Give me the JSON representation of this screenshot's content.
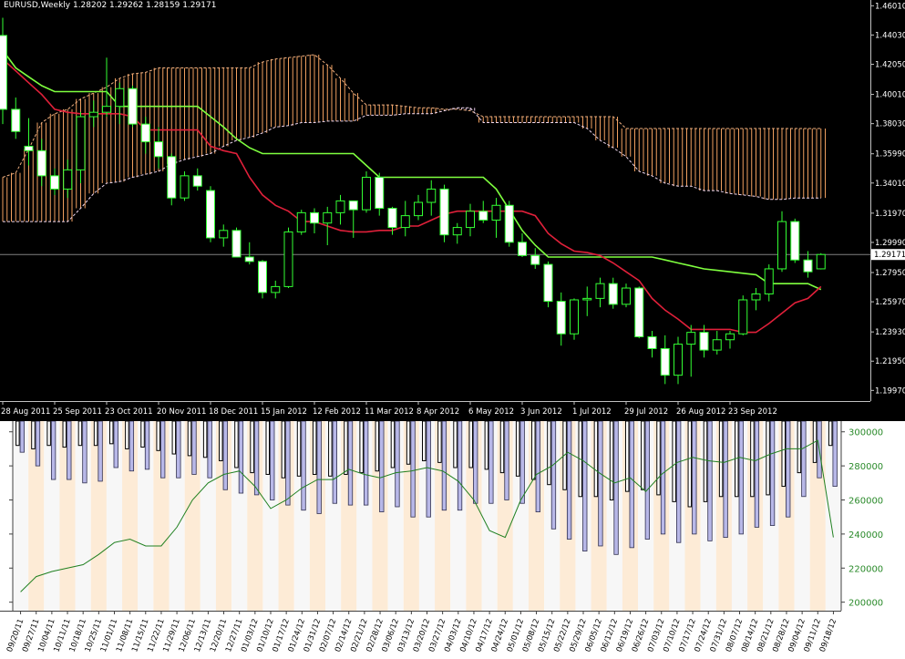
{
  "header": {
    "title": "EURUSD,Weekly  1.28202 1.29262 1.28159 1.29171"
  },
  "chart_data": [
    {
      "type": "candlestick",
      "symbol": "EURUSD",
      "timeframe": "Weekly",
      "ohlc_label": "1.28202 1.29262 1.28159 1.29171",
      "current_price_label": "1.29171",
      "ylim": [
        1.1925,
        1.464
      ],
      "y_ticks": [
        "1.46010",
        "1.44030",
        "1.42050",
        "1.40010",
        "1.38030",
        "1.35990",
        "1.34010",
        "1.31970",
        "1.29990",
        "1.27950",
        "1.25970",
        "1.23930",
        "1.21950",
        "1.19970"
      ],
      "x_ticks": [
        "28 Aug 2011",
        "25 Sep 2011",
        "23 Oct 2011",
        "20 Nov 2011",
        "18 Dec 2011",
        "15 Jan 2012",
        "12 Feb 2012",
        "11 Mar 2012",
        "8 Apr 2012",
        "6 May 2012",
        "3 Jun 2012",
        "1 Jul 2012",
        "29 Jul 2012",
        "26 Aug 2012",
        "23 Sep 2012"
      ],
      "candles": [
        [
          1.44,
          1.452,
          1.38,
          1.39
        ],
        [
          1.39,
          1.398,
          1.37,
          1.375
        ],
        [
          1.365,
          1.384,
          1.352,
          1.362
        ],
        [
          1.362,
          1.37,
          1.338,
          1.345
        ],
        [
          1.345,
          1.35,
          1.332,
          1.336
        ],
        [
          1.336,
          1.356,
          1.33,
          1.349
        ],
        [
          1.349,
          1.388,
          1.34,
          1.385
        ],
        [
          1.385,
          1.396,
          1.378,
          1.388
        ],
        [
          1.388,
          1.425,
          1.385,
          1.392
        ],
        [
          1.392,
          1.408,
          1.38,
          1.404
        ],
        [
          1.404,
          1.406,
          1.378,
          1.38
        ],
        [
          1.38,
          1.385,
          1.36,
          1.368
        ],
        [
          1.368,
          1.378,
          1.35,
          1.358
        ],
        [
          1.358,
          1.36,
          1.325,
          1.33
        ],
        [
          1.33,
          1.348,
          1.328,
          1.345
        ],
        [
          1.345,
          1.35,
          1.335,
          1.338
        ],
        [
          1.335,
          1.338,
          1.3,
          1.303
        ],
        [
          1.303,
          1.312,
          1.297,
          1.308
        ],
        [
          1.308,
          1.31,
          1.292,
          1.29
        ],
        [
          1.29,
          1.3,
          1.285,
          1.287
        ],
        [
          1.287,
          1.288,
          1.262,
          1.266
        ],
        [
          1.266,
          1.274,
          1.262,
          1.27
        ],
        [
          1.27,
          1.31,
          1.269,
          1.307
        ],
        [
          1.307,
          1.322,
          1.305,
          1.32
        ],
        [
          1.32,
          1.323,
          1.306,
          1.313
        ],
        [
          1.313,
          1.324,
          1.298,
          1.32
        ],
        [
          1.32,
          1.332,
          1.312,
          1.328
        ],
        [
          1.328,
          1.328,
          1.303,
          1.322
        ],
        [
          1.322,
          1.348,
          1.32,
          1.344
        ],
        [
          1.344,
          1.347,
          1.318,
          1.323
        ],
        [
          1.323,
          1.324,
          1.305,
          1.31
        ],
        [
          1.31,
          1.328,
          1.304,
          1.318
        ],
        [
          1.318,
          1.332,
          1.315,
          1.327
        ],
        [
          1.327,
          1.342,
          1.318,
          1.336
        ],
        [
          1.336,
          1.339,
          1.3,
          1.305
        ],
        [
          1.305,
          1.313,
          1.299,
          1.31
        ],
        [
          1.31,
          1.326,
          1.304,
          1.321
        ],
        [
          1.321,
          1.328,
          1.313,
          1.315
        ],
        [
          1.315,
          1.33,
          1.303,
          1.325
        ],
        [
          1.325,
          1.328,
          1.297,
          1.3
        ],
        [
          1.3,
          1.306,
          1.29,
          1.291
        ],
        [
          1.291,
          1.296,
          1.282,
          1.285
        ],
        [
          1.285,
          1.287,
          1.256,
          1.26
        ],
        [
          1.26,
          1.266,
          1.23,
          1.238
        ],
        [
          1.238,
          1.262,
          1.234,
          1.261
        ],
        [
          1.261,
          1.27,
          1.25,
          1.262
        ],
        [
          1.262,
          1.276,
          1.256,
          1.272
        ],
        [
          1.272,
          1.276,
          1.255,
          1.258
        ],
        [
          1.258,
          1.272,
          1.256,
          1.269
        ],
        [
          1.269,
          1.27,
          1.235,
          1.236
        ],
        [
          1.236,
          1.24,
          1.222,
          1.228
        ],
        [
          1.228,
          1.237,
          1.204,
          1.21
        ],
        [
          1.21,
          1.236,
          1.204,
          1.231
        ],
        [
          1.231,
          1.244,
          1.209,
          1.239
        ],
        [
          1.239,
          1.244,
          1.222,
          1.227
        ],
        [
          1.227,
          1.24,
          1.224,
          1.234
        ],
        [
          1.234,
          1.24,
          1.228,
          1.238
        ],
        [
          1.238,
          1.264,
          1.237,
          1.261
        ],
        [
          1.261,
          1.269,
          1.254,
          1.265
        ],
        [
          1.265,
          1.285,
          1.26,
          1.282
        ],
        [
          1.282,
          1.321,
          1.28,
          1.314
        ],
        [
          1.314,
          1.316,
          1.286,
          1.288
        ],
        [
          1.288,
          1.294,
          1.276,
          1.28
        ],
        [
          1.282,
          1.2926,
          1.2816,
          1.2917
        ]
      ],
      "tenkan": [
        1.43,
        1.418,
        1.412,
        1.406,
        1.402,
        1.402,
        1.402,
        1.402,
        1.402,
        1.392,
        1.392,
        1.392,
        1.392,
        1.392,
        1.392,
        1.392,
        1.385,
        1.378,
        1.37,
        1.364,
        1.36,
        1.36,
        1.36,
        1.36,
        1.36,
        1.36,
        1.36,
        1.36,
        1.352,
        1.344,
        1.344,
        1.344,
        1.344,
        1.344,
        1.344,
        1.344,
        1.344,
        1.344,
        1.336,
        1.322,
        1.308,
        1.298,
        1.29,
        1.29,
        1.29,
        1.29,
        1.29,
        1.29,
        1.29,
        1.29,
        1.29,
        1.288,
        1.286,
        1.284,
        1.282,
        1.281,
        1.28,
        1.279,
        1.278,
        1.272,
        1.272,
        1.272,
        1.272,
        1.268
      ],
      "kijun": [
        1.424,
        1.416,
        1.408,
        1.4,
        1.39,
        1.388,
        1.387,
        1.387,
        1.387,
        1.387,
        1.385,
        1.376,
        1.376,
        1.376,
        1.376,
        1.376,
        1.365,
        1.362,
        1.36,
        1.344,
        1.332,
        1.325,
        1.321,
        1.314,
        1.314,
        1.311,
        1.308,
        1.307,
        1.307,
        1.308,
        1.308,
        1.311,
        1.311,
        1.315,
        1.319,
        1.321,
        1.321,
        1.321,
        1.321,
        1.321,
        1.321,
        1.318,
        1.306,
        1.299,
        1.294,
        1.293,
        1.291,
        1.286,
        1.28,
        1.274,
        1.262,
        1.254,
        1.248,
        1.241,
        1.241,
        1.241,
        1.241,
        1.239,
        1.239,
        1.245,
        1.252,
        1.259,
        1.262,
        1.27
      ],
      "span_a": [
        1.344,
        1.347,
        1.363,
        1.381,
        1.387,
        1.39,
        1.397,
        1.401,
        1.405,
        1.411,
        1.414,
        1.415,
        1.418,
        1.418,
        1.418,
        1.418,
        1.418,
        1.418,
        1.418,
        1.418,
        1.422,
        1.424,
        1.425,
        1.426,
        1.427,
        1.42,
        1.411,
        1.401,
        1.393,
        1.393,
        1.393,
        1.392,
        1.391,
        1.391,
        1.39,
        1.39,
        1.389,
        1.385,
        1.385,
        1.385,
        1.385,
        1.385,
        1.385,
        1.385,
        1.385,
        1.385,
        1.385,
        1.385,
        1.377,
        1.377,
        1.377,
        1.377,
        1.377,
        1.377,
        1.377,
        1.377,
        1.377,
        1.377,
        1.377,
        1.377,
        1.377,
        1.377,
        1.377,
        1.377
      ],
      "span_b": [
        1.314,
        1.314,
        1.314,
        1.314,
        1.314,
        1.314,
        1.323,
        1.333,
        1.34,
        1.341,
        1.344,
        1.346,
        1.348,
        1.353,
        1.356,
        1.358,
        1.36,
        1.365,
        1.369,
        1.371,
        1.374,
        1.378,
        1.379,
        1.381,
        1.381,
        1.382,
        1.382,
        1.382,
        1.386,
        1.386,
        1.386,
        1.387,
        1.387,
        1.387,
        1.389,
        1.391,
        1.391,
        1.381,
        1.381,
        1.381,
        1.381,
        1.381,
        1.381,
        1.381,
        1.381,
        1.377,
        1.369,
        1.364,
        1.358,
        1.348,
        1.345,
        1.34,
        1.338,
        1.338,
        1.335,
        1.335,
        1.333,
        1.332,
        1.331,
        1.329,
        1.329,
        1.33,
        1.33,
        1.33
      ]
    },
    {
      "type": "bar+line",
      "y_ticks": [
        "300000",
        "280000",
        "260000",
        "240000",
        "220000",
        "200000"
      ],
      "ylim": [
        195000,
        302000
      ],
      "x_ticks": [
        "09/20/11",
        "09/27/11",
        "10/04/11",
        "10/11/11",
        "10/18/11",
        "10/25/11",
        "11/01/11",
        "11/08/11",
        "11/15/11",
        "11/22/11",
        "11/29/11",
        "12/06/11",
        "12/13/11",
        "12/20/11",
        "12/27/11",
        "01/03/12",
        "01/10/12",
        "01/17/12",
        "01/24/12",
        "01/31/12",
        "02/07/12",
        "02/14/12",
        "02/21/12",
        "02/28/12",
        "03/06/12",
        "03/13/12",
        "03/20/12",
        "03/27/12",
        "04/03/12",
        "04/10/12",
        "04/17/12",
        "04/24/12",
        "05/01/12",
        "05/08/12",
        "05/15/12",
        "05/22/12",
        "05/29/12",
        "06/05/12",
        "06/12/12",
        "06/19/12",
        "06/26/12",
        "07/03/12",
        "07/10/12",
        "07/17/12",
        "07/24/12",
        "07/31/12",
        "08/07/12",
        "08/14/12",
        "08/21/12",
        "08/28/12",
        "09/04/12",
        "09/11/12",
        "09/18/12"
      ],
      "bars_dark": [
        292000,
        290000,
        292000,
        291000,
        292000,
        292000,
        293000,
        290000,
        291000,
        289000,
        287000,
        286000,
        285000,
        283000,
        279000,
        276000,
        275000,
        273000,
        274000,
        275000,
        274000,
        275000,
        276000,
        277000,
        279000,
        281000,
        283000,
        282000,
        279000,
        279000,
        278000,
        276000,
        274000,
        272000,
        269000,
        266000,
        262000,
        262000,
        260000,
        265000,
        266000,
        263000,
        259000,
        256000,
        259000,
        262000,
        262000,
        262000,
        263000,
        268000,
        276000,
        282000,
        292000
      ],
      "bars_blue": [
        288000,
        280000,
        272000,
        272000,
        270000,
        271000,
        279000,
        277000,
        278000,
        273000,
        273000,
        275000,
        273000,
        266000,
        264000,
        263000,
        260000,
        257000,
        254000,
        252000,
        258000,
        257000,
        257000,
        253000,
        256000,
        250000,
        250000,
        254000,
        254000,
        258000,
        258000,
        260000,
        258000,
        253000,
        243000,
        237000,
        230000,
        233000,
        228000,
        232000,
        237000,
        240000,
        235000,
        240000,
        236000,
        238000,
        240000,
        244000,
        245000,
        250000,
        262000,
        273000,
        268000
      ],
      "line": [
        206000,
        215000,
        218000,
        220000,
        222000,
        228000,
        235000,
        237000,
        233000,
        233000,
        244000,
        260000,
        270000,
        275000,
        277000,
        268000,
        255000,
        260000,
        267000,
        272000,
        272000,
        278000,
        275000,
        273000,
        276000,
        277000,
        279000,
        277000,
        271000,
        260000,
        242000,
        238000,
        260000,
        275000,
        280000,
        288000,
        283000,
        276000,
        270000,
        273000,
        265000,
        275000,
        282000,
        285000,
        283000,
        282000,
        285000,
        283000,
        287000,
        290000,
        290000,
        295000,
        238000
      ]
    }
  ]
}
